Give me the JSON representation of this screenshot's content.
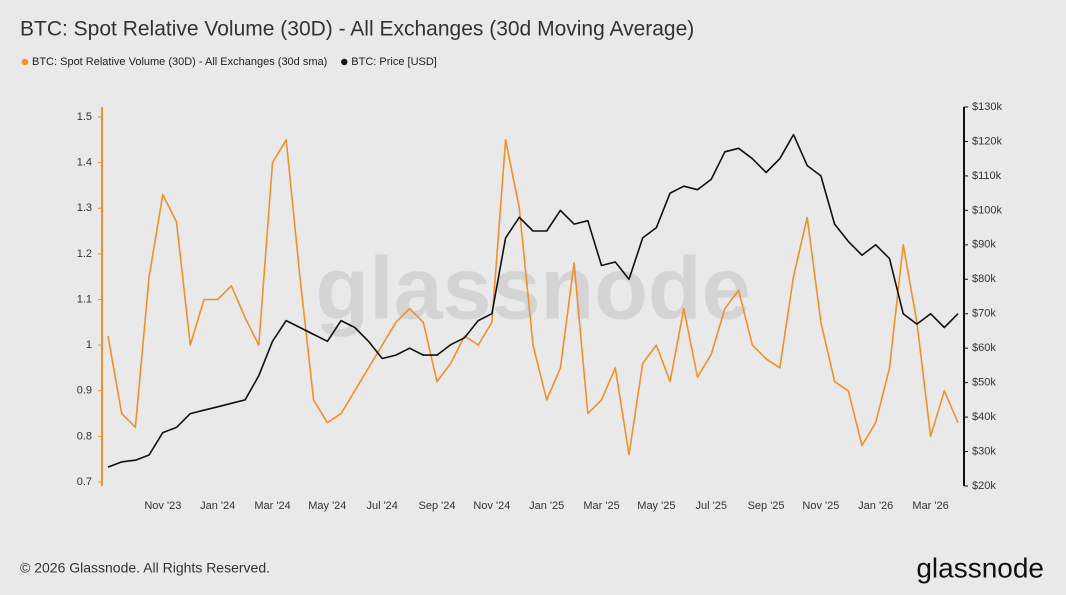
{
  "chart_data": {
    "type": "line",
    "title": "BTC: Spot Relative Volume (30D) - All Exchanges (30d Moving Average)",
    "watermark": "glassnode",
    "categories": [
      null,
      null,
      null,
      null,
      "Nov '23",
      null,
      null,
      null,
      "Jan '24",
      null,
      null,
      null,
      "Mar '24",
      null,
      null,
      null,
      "May '24",
      null,
      null,
      null,
      "Jul '24",
      null,
      null,
      null,
      "Sep '24",
      null,
      null,
      null,
      "Nov '24",
      null,
      null,
      null,
      "Jan '25",
      null,
      null,
      null,
      "Mar '25",
      null,
      null,
      null,
      "May '25",
      null,
      null,
      null,
      "Jul '25",
      null,
      null,
      null,
      "Sep '25",
      null,
      null,
      null,
      "Nov '25",
      null,
      null,
      null,
      "Jan '26",
      null,
      null,
      null,
      "Mar '26",
      null,
      null
    ],
    "series": [
      {
        "name": "BTC: Spot Relative Volume (30D) - All Exchanges (30d sma)",
        "color": "#f0902a",
        "values": [
          1.02,
          0.85,
          0.82,
          1.15,
          1.33,
          1.27,
          1.0,
          1.1,
          1.1,
          1.13,
          1.06,
          1.0,
          1.4,
          1.45,
          1.15,
          0.88,
          0.83,
          0.85,
          0.9,
          0.95,
          1.0,
          1.05,
          1.08,
          1.05,
          0.92,
          0.96,
          1.02,
          1.0,
          1.05,
          1.45,
          1.3,
          1.0,
          0.88,
          0.95,
          1.18,
          0.85,
          0.88,
          0.95,
          0.76,
          0.96,
          1.0,
          0.92,
          1.08,
          0.93,
          0.98,
          1.08,
          1.12,
          1.0,
          0.97,
          0.95,
          1.15,
          1.28,
          1.05,
          0.92,
          0.9,
          0.78,
          0.83,
          0.95,
          1.22,
          1.05,
          0.8,
          0.9,
          0.83
        ]
      },
      {
        "name": "BTC: Price [USD]",
        "color": "#111111",
        "axis": "y2",
        "values": [
          25500,
          27000,
          27500,
          29000,
          35500,
          37000,
          41000,
          42000,
          43000,
          44000,
          45000,
          52000,
          62000,
          68000,
          66000,
          64000,
          62000,
          68000,
          66000,
          62000,
          57000,
          58000,
          60000,
          58000,
          58000,
          61000,
          63000,
          68000,
          70000,
          92000,
          98000,
          94000,
          94000,
          100000,
          96000,
          97000,
          84000,
          85000,
          80000,
          92000,
          95000,
          105000,
          107000,
          106000,
          109000,
          117000,
          118000,
          115000,
          111000,
          115000,
          122000,
          113000,
          110000,
          96000,
          91000,
          87000,
          90000,
          86000,
          70000,
          67000,
          70000,
          66000,
          70000
        ]
      }
    ],
    "ylim": [
      0.7,
      1.5
    ],
    "yticks": [
      0.7,
      0.8,
      0.9,
      1,
      1.1,
      1.2,
      1.3,
      1.4,
      1.5
    ],
    "y2lim": [
      20000,
      130000
    ],
    "y2ticks": [
      {
        "value": 20000,
        "label": "$20k"
      },
      {
        "value": 30000,
        "label": "$30k"
      },
      {
        "value": 40000,
        "label": "$40k"
      },
      {
        "value": 50000,
        "label": "$50k"
      },
      {
        "value": 60000,
        "label": "$60k"
      },
      {
        "value": 70000,
        "label": "$70k"
      },
      {
        "value": 80000,
        "label": "$80k"
      },
      {
        "value": 90000,
        "label": "$90k"
      },
      {
        "value": 100000,
        "label": "$100k"
      },
      {
        "value": 110000,
        "label": "$110k"
      },
      {
        "value": 120000,
        "label": "$120k"
      },
      {
        "value": 130000,
        "label": "$130k"
      }
    ],
    "grid": false
  },
  "footer": {
    "copyright": "© 2026 Glassnode. All Rights Reserved.",
    "logo": "glassnode"
  }
}
